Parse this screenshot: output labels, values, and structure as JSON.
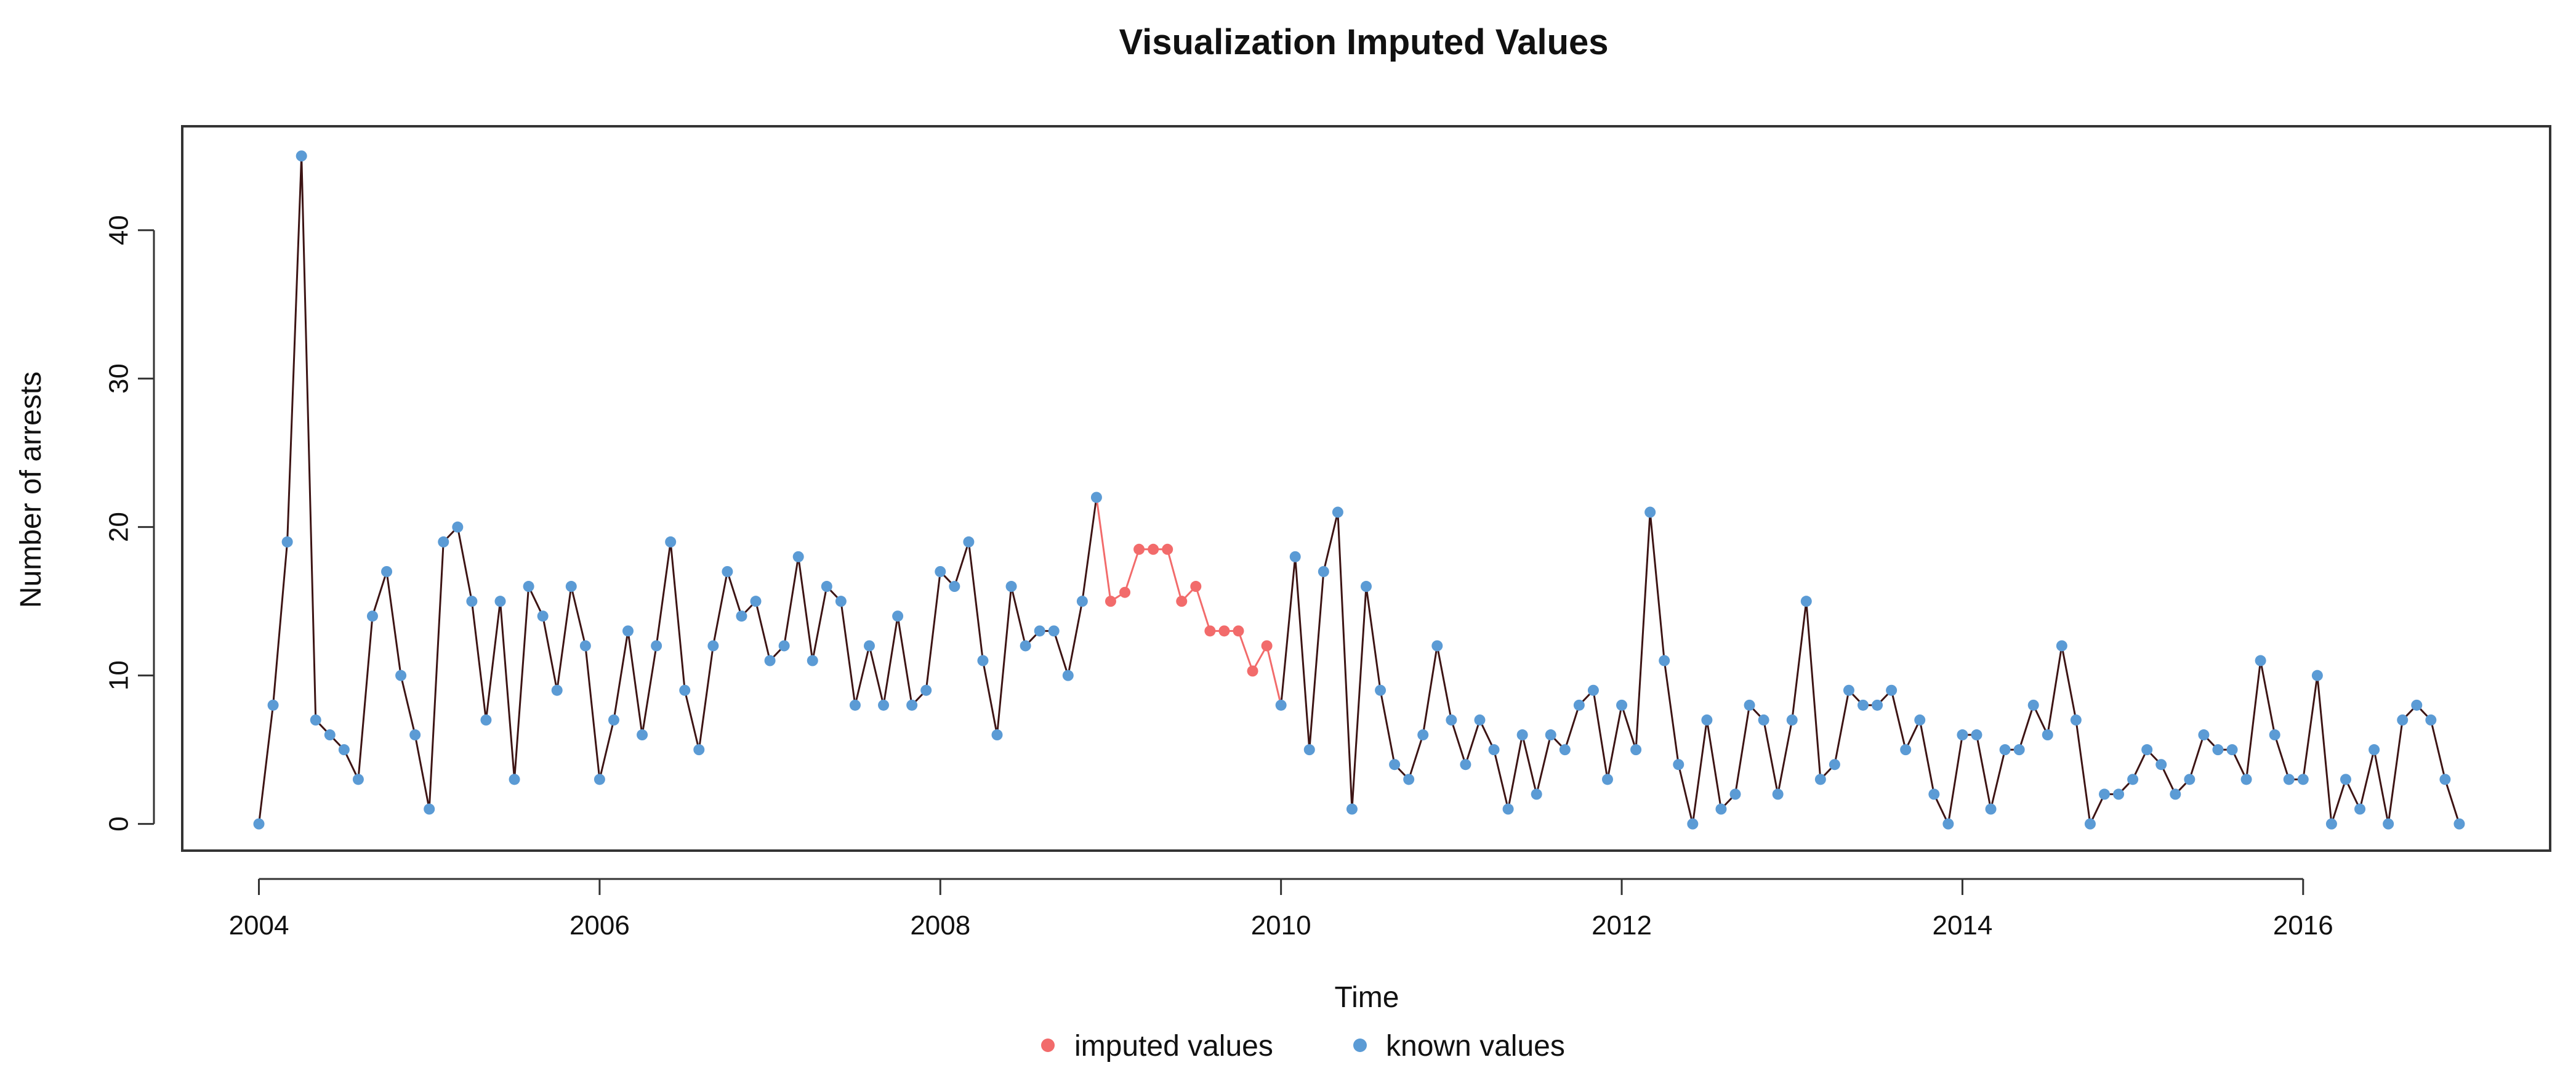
{
  "chart_data": {
    "type": "line",
    "title": "Visualization Imputed Values",
    "xlabel": "Time",
    "ylabel": "Number of arrests",
    "x_start": 2004.0,
    "x_step": 0.08333333,
    "xlim": [
      2003.55,
      2017.45
    ],
    "ylim": [
      -1.8,
      47.0
    ],
    "x_ticks": [
      2004,
      2006,
      2008,
      2010,
      2012,
      2014,
      2016
    ],
    "x_tick_labels": [
      "2004",
      "2006",
      "2008",
      "2010",
      "2012",
      "2014",
      "2016"
    ],
    "y_ticks": [
      0,
      10,
      20,
      30,
      40
    ],
    "y_tick_labels": [
      "0",
      "10",
      "20",
      "30",
      "40"
    ],
    "grid": false,
    "legend_position": "bottom-center",
    "colors": {
      "line": "#3d1414",
      "imputed": "#f26b6b",
      "known": "#5b9bd5",
      "axis": "#333333"
    },
    "series": [
      {
        "name": "Number of arrests",
        "values": [
          0,
          8,
          19,
          45,
          7,
          6,
          5,
          3,
          14,
          17,
          10,
          6,
          1,
          19,
          20,
          15,
          7,
          15,
          3,
          16,
          14,
          9,
          16,
          12,
          3,
          7,
          13,
          6,
          12,
          19,
          9,
          5,
          12,
          17,
          14,
          15,
          11,
          12,
          18,
          11,
          16,
          15,
          8,
          12,
          8,
          14,
          8,
          9,
          17,
          16,
          19,
          11,
          6,
          16,
          12,
          13,
          13,
          10,
          15,
          22,
          15,
          15.6,
          18.5,
          18.5,
          18.5,
          15,
          16,
          13,
          13,
          13,
          10.3,
          12,
          8,
          18,
          5,
          17,
          21,
          1,
          16,
          9,
          4,
          3,
          6,
          12,
          7,
          4,
          7,
          5,
          1,
          6,
          2,
          6,
          5,
          8,
          9,
          3,
          8,
          5,
          21,
          11,
          4,
          0,
          7,
          1,
          2,
          8,
          7,
          2,
          7,
          15,
          3,
          4,
          9,
          8,
          8,
          9,
          5,
          7,
          2,
          0,
          6,
          6,
          1,
          5,
          5,
          8,
          6,
          12,
          7,
          0,
          2,
          2,
          3,
          5,
          4,
          2,
          3,
          6,
          5,
          5,
          3,
          11,
          6,
          3,
          3,
          10,
          0,
          3,
          1,
          5,
          0,
          7,
          8,
          7,
          3,
          0
        ],
        "imputed_index_start": 60,
        "imputed_index_end": 71
      }
    ],
    "legend": [
      {
        "label": "imputed values",
        "color": "#f26b6b"
      },
      {
        "label": "known values",
        "color": "#5b9bd5"
      }
    ]
  }
}
